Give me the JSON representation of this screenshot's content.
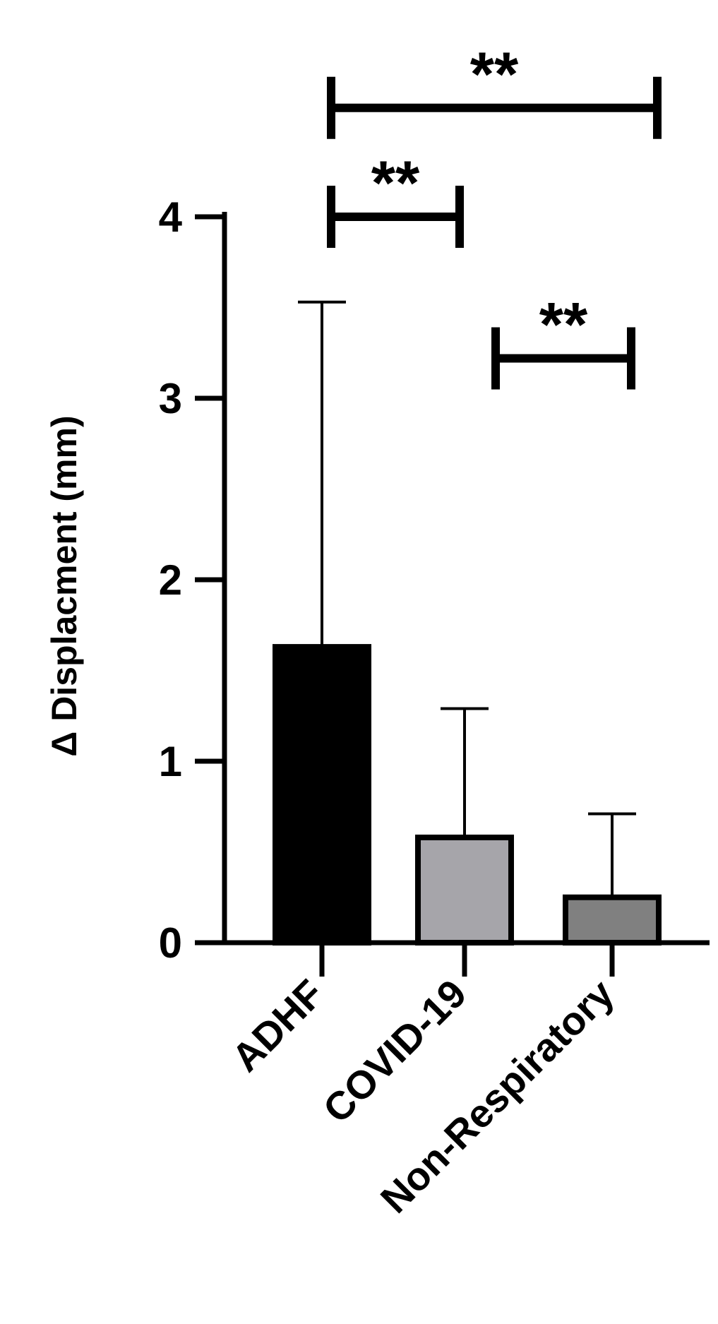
{
  "chart_data": {
    "type": "bar",
    "title": "",
    "xlabel": "",
    "ylabel": "Δ Displacment (mm)",
    "ylim": [
      0,
      4
    ],
    "yticks": [
      0,
      1,
      2,
      3,
      4
    ],
    "categories": [
      "ADHF",
      "COVID-19",
      "Non-Respiratory"
    ],
    "values": [
      1.63,
      0.58,
      0.25
    ],
    "error_upper": [
      3.53,
      1.29,
      0.71
    ],
    "bar_colors": [
      "#000000",
      "#a6a5aa",
      "#808080"
    ],
    "grid": false,
    "legend": "none",
    "significance": [
      {
        "from": 0,
        "to": 1,
        "label": "**",
        "level": 4.0
      },
      {
        "from": 0,
        "to": 2,
        "label": "**",
        "level": 4.6
      },
      {
        "from": 1,
        "to": 2,
        "label": "**",
        "level": 3.22
      }
    ]
  }
}
